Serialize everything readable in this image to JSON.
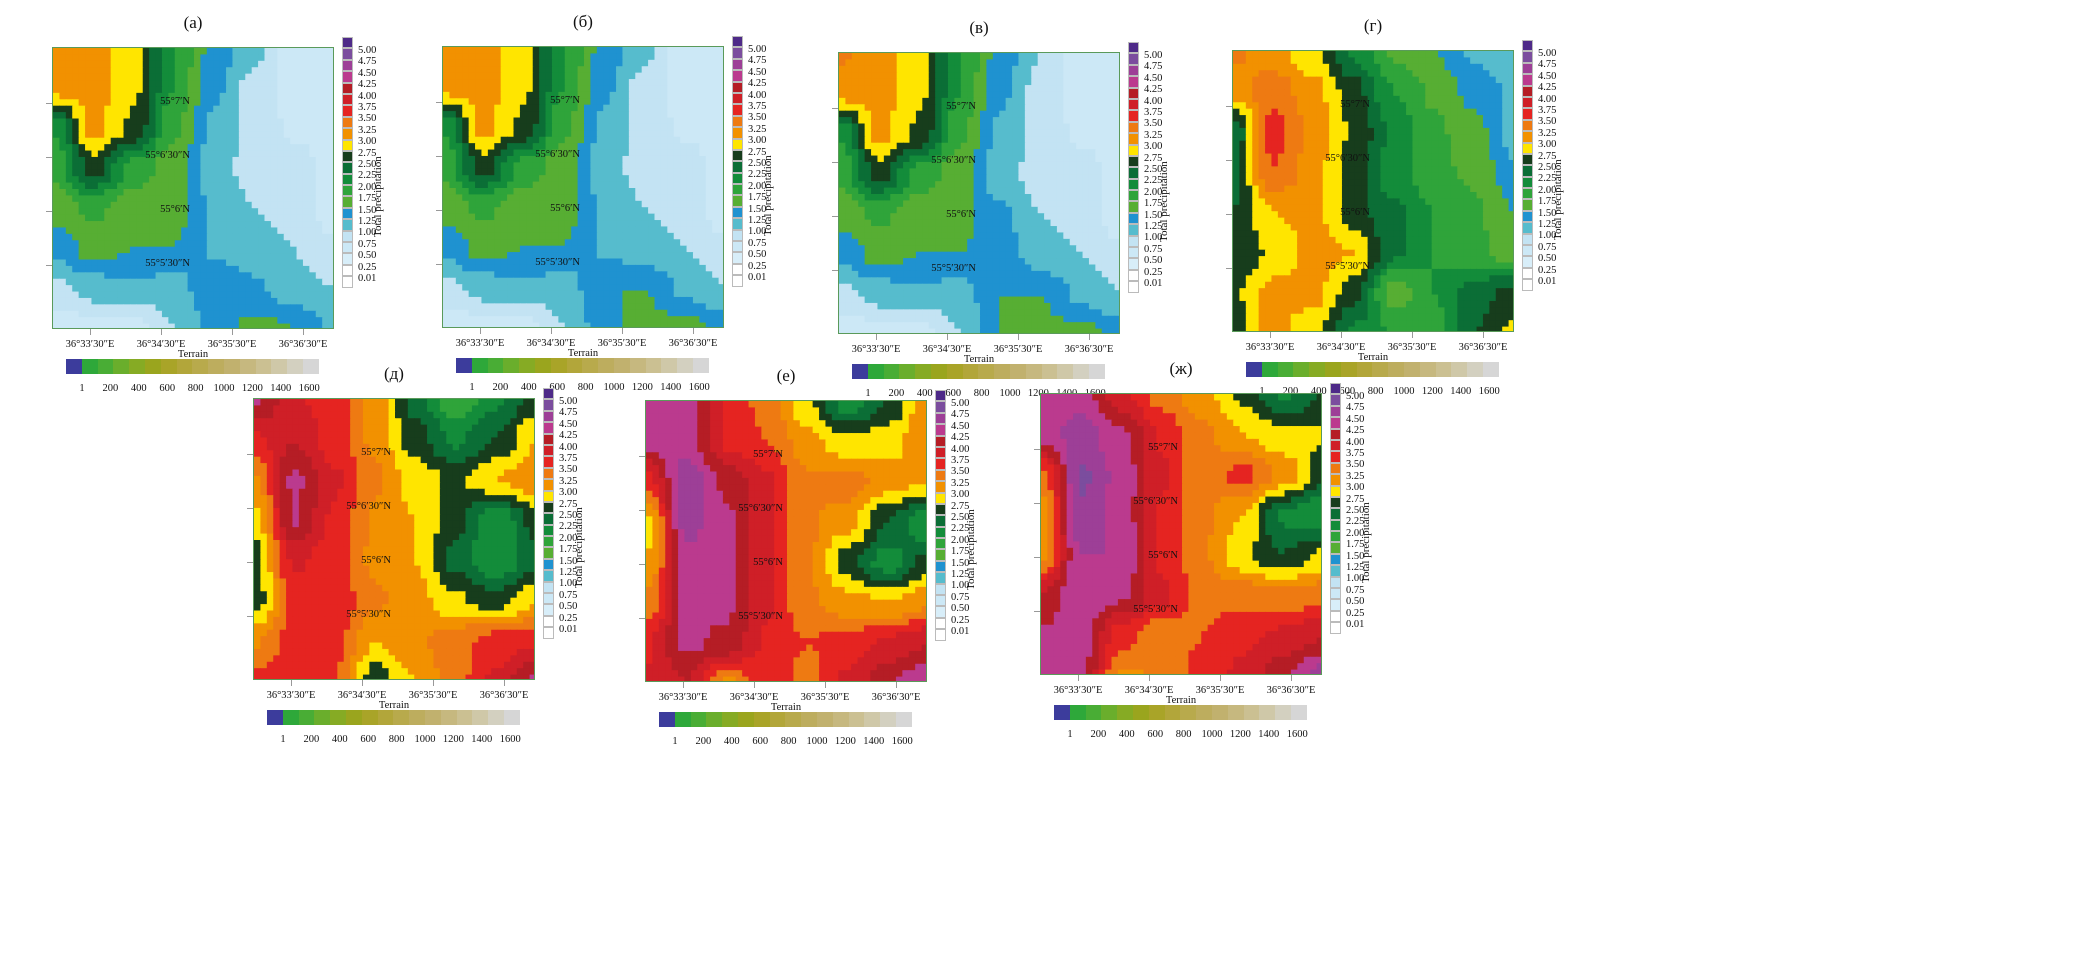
{
  "colors": {
    "levels": [
      "5.00",
      "4.75",
      "4.50",
      "4.25",
      "4.00",
      "3.75",
      "3.50",
      "3.25",
      "3.00",
      "2.75",
      "2.50",
      "2.25",
      "2.00",
      "1.75",
      "1.50",
      "1.25",
      "1.00",
      "0.75",
      "0.50",
      "0.25",
      "0.01"
    ],
    "fills": [
      "#4e2a88",
      "#7b4d9e",
      "#9d3f97",
      "#bb3a8e",
      "#b51d25",
      "#cf1f27",
      "#e52421",
      "#ee7a12",
      "#f29100",
      "#ffe500",
      "#173d1c",
      "#0b6e36",
      "#138c3a",
      "#2fa43a",
      "#57ae33",
      "#1f92d0",
      "#56bccd",
      "#c3e3f3",
      "#cce8f6",
      "#d8eef9",
      "#ffffff"
    ],
    "terrain": [
      "#3c3c9c",
      "#2ea83a",
      "#49ad35",
      "#6aae2c",
      "#86ab24",
      "#9aa51e",
      "#a9a428",
      "#b2a63a",
      "#b8aa4c",
      "#bdad5e",
      "#c1b16e",
      "#c6b87f",
      "#cbc092",
      "#cfc8a8",
      "#d3d0c0",
      "#d6d6d6"
    ]
  },
  "colorbar_label": "Total precipitation",
  "terrain_label": "Terrain",
  "terrain_ticks": [
    "1",
    "200",
    "400",
    "600",
    "800",
    "1000",
    "1200",
    "1400",
    "1600"
  ],
  "x_ticks": [
    "36°33′30″E",
    "36°34′30″E",
    "36°35′30″E",
    "36°36′30″E"
  ],
  "y_ticks": [
    "55°7′N",
    "55°6′30″N",
    "55°6′N",
    "55°5′30″N"
  ],
  "chart_data": [
    {
      "type": "heatmap",
      "title": "(а)",
      "z": [
        [
          3.2,
          3.1,
          2.8,
          2.0,
          1.4,
          1.1,
          0.6,
          0.6
        ],
        [
          3.1,
          3.1,
          2.8,
          2.0,
          1.3,
          0.9,
          0.6,
          0.6
        ],
        [
          2.0,
          3.1,
          2.7,
          1.8,
          1.2,
          0.9,
          0.7,
          0.6
        ],
        [
          1.8,
          2.6,
          1.9,
          1.6,
          1.1,
          0.9,
          0.9,
          0.6
        ],
        [
          1.6,
          1.8,
          1.6,
          1.6,
          1.2,
          1.0,
          0.9,
          0.6
        ],
        [
          1.3,
          1.6,
          1.5,
          1.5,
          1.2,
          1.1,
          1.0,
          0.8
        ],
        [
          0.9,
          1.1,
          1.2,
          1.1,
          1.5,
          1.3,
          1.1,
          1.0
        ],
        [
          0.6,
          0.6,
          0.6,
          1.0,
          1.3,
          1.6,
          1.5,
          1.2
        ]
      ]
    },
    {
      "type": "heatmap",
      "title": "(б)",
      "z": [
        [
          3.2,
          3.1,
          2.8,
          2.0,
          1.4,
          1.1,
          0.6,
          0.6
        ],
        [
          3.1,
          3.1,
          2.8,
          2.0,
          1.3,
          0.9,
          0.6,
          0.6
        ],
        [
          2.0,
          3.1,
          2.7,
          1.8,
          1.2,
          0.9,
          0.7,
          0.6
        ],
        [
          1.8,
          2.6,
          1.9,
          1.6,
          1.1,
          0.9,
          0.9,
          0.6
        ],
        [
          1.6,
          1.8,
          1.6,
          1.6,
          1.2,
          1.0,
          0.9,
          0.6
        ],
        [
          1.3,
          1.6,
          1.5,
          1.5,
          1.2,
          1.1,
          1.0,
          0.8
        ],
        [
          0.9,
          1.1,
          1.2,
          1.1,
          1.5,
          1.5,
          1.2,
          1.0
        ],
        [
          0.6,
          0.6,
          0.6,
          1.0,
          1.4,
          1.6,
          1.6,
          1.4
        ]
      ]
    },
    {
      "type": "heatmap",
      "title": "(в)",
      "z": [
        [
          3.3,
          3.1,
          2.8,
          2.0,
          1.4,
          1.0,
          0.6,
          0.6
        ],
        [
          3.1,
          3.1,
          2.8,
          2.0,
          1.3,
          0.9,
          0.6,
          0.6
        ],
        [
          2.0,
          3.1,
          2.7,
          1.8,
          1.2,
          0.9,
          0.7,
          0.6
        ],
        [
          1.8,
          2.6,
          1.9,
          1.6,
          1.1,
          0.9,
          0.9,
          0.6
        ],
        [
          1.6,
          1.8,
          1.6,
          1.6,
          1.3,
          1.0,
          0.9,
          0.6
        ],
        [
          1.3,
          1.6,
          1.5,
          1.5,
          1.4,
          1.1,
          1.0,
          0.8
        ],
        [
          0.9,
          1.1,
          1.2,
          1.1,
          1.5,
          1.5,
          1.2,
          1.0
        ],
        [
          0.6,
          0.6,
          0.6,
          1.0,
          1.5,
          1.6,
          1.6,
          1.4
        ]
      ]
    },
    {
      "type": "heatmap",
      "title": "(г)",
      "z": [
        [
          3.3,
          3.1,
          2.8,
          2.2,
          1.7,
          1.5,
          1.2,
          1.0
        ],
        [
          3.1,
          3.4,
          3.1,
          2.6,
          2.0,
          1.7,
          1.4,
          1.2
        ],
        [
          2.3,
          3.6,
          3.2,
          2.7,
          2.2,
          1.8,
          1.6,
          1.1
        ],
        [
          2.4,
          3.5,
          3.1,
          2.6,
          2.1,
          1.8,
          1.7,
          1.3
        ],
        [
          2.5,
          3.0,
          3.1,
          2.6,
          2.3,
          2.0,
          1.8,
          1.5
        ],
        [
          2.5,
          2.8,
          3.1,
          3.0,
          2.3,
          2.0,
          1.8,
          1.6
        ],
        [
          2.7,
          3.1,
          3.1,
          2.6,
          1.6,
          2.0,
          2.4,
          2.6
        ],
        [
          2.6,
          3.1,
          2.8,
          2.2,
          2.0,
          1.9,
          2.5,
          2.8
        ]
      ]
    },
    {
      "type": "heatmap",
      "title": "(д)",
      "z": [
        [
          4.3,
          3.8,
          3.6,
          3.2,
          2.4,
          1.8,
          2.2,
          2.6
        ],
        [
          3.7,
          4.0,
          3.6,
          3.2,
          2.6,
          2.2,
          2.5,
          3.0
        ],
        [
          3.2,
          4.3,
          3.8,
          3.3,
          2.9,
          2.7,
          3.0,
          3.2
        ],
        [
          2.9,
          4.3,
          3.7,
          3.2,
          3.0,
          2.6,
          2.0,
          2.6
        ],
        [
          2.6,
          3.8,
          3.6,
          3.2,
          3.0,
          2.4,
          2.0,
          2.4
        ],
        [
          2.6,
          3.6,
          3.7,
          3.3,
          3.1,
          2.8,
          2.6,
          3.0
        ],
        [
          3.2,
          3.6,
          3.6,
          3.0,
          3.2,
          3.4,
          3.6,
          3.7
        ],
        [
          3.6,
          3.6,
          3.5,
          2.6,
          3.0,
          3.4,
          3.8,
          4.3
        ]
      ]
    },
    {
      "type": "heatmap",
      "title": "(е)",
      "z": [
        [
          4.4,
          4.4,
          3.7,
          3.4,
          2.8,
          2.1,
          2.5,
          3.2
        ],
        [
          4.4,
          4.4,
          3.7,
          3.5,
          3.1,
          2.8,
          2.9,
          3.2
        ],
        [
          3.6,
          4.7,
          4.2,
          3.8,
          3.3,
          3.4,
          3.1,
          3.0
        ],
        [
          2.9,
          4.6,
          4.3,
          3.8,
          3.3,
          3.1,
          2.5,
          2.0
        ],
        [
          3.0,
          4.4,
          4.3,
          3.8,
          3.3,
          2.6,
          2.1,
          2.6
        ],
        [
          3.3,
          4.3,
          4.3,
          3.8,
          3.3,
          3.1,
          3.0,
          3.2
        ],
        [
          3.7,
          4.3,
          4.2,
          3.7,
          3.5,
          3.6,
          3.8,
          4.0
        ],
        [
          3.8,
          4.0,
          3.2,
          3.7,
          3.4,
          3.8,
          4.2,
          4.5
        ]
      ]
    },
    {
      "type": "heatmap",
      "title": "(ж)",
      "z": [
        [
          4.4,
          4.4,
          3.8,
          3.4,
          3.1,
          2.7,
          2.2,
          2.5
        ],
        [
          4.4,
          4.6,
          4.3,
          3.7,
          3.3,
          3.0,
          2.8,
          2.8
        ],
        [
          3.4,
          4.8,
          4.4,
          3.8,
          3.3,
          3.6,
          3.2,
          2.6
        ],
        [
          3.1,
          4.7,
          4.4,
          3.7,
          3.3,
          3.0,
          2.2,
          2.0
        ],
        [
          3.2,
          4.5,
          4.5,
          3.7,
          3.3,
          2.8,
          2.5,
          2.8
        ],
        [
          4.0,
          4.5,
          4.3,
          3.8,
          3.4,
          3.4,
          3.3,
          3.4
        ],
        [
          4.3,
          4.4,
          3.6,
          3.3,
          3.5,
          3.7,
          3.8,
          4.0
        ],
        [
          4.5,
          4.3,
          3.2,
          3.3,
          3.6,
          3.8,
          4.2,
          4.6
        ]
      ]
    }
  ]
}
